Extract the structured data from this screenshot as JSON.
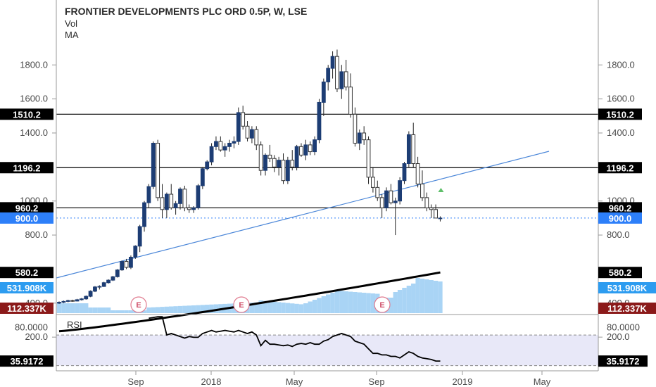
{
  "header": {
    "title": "FRONTIER DEVELOPMENTS PLC ORD 0.5P, W, LSE",
    "vol_label": "Vol",
    "ma_label": "MA"
  },
  "rsi": {
    "label": "RSI",
    "ticks": [
      "80.0000"
    ],
    "value": 35.9172,
    "value_label": "35.9172",
    "upper_band": 70,
    "lower_band": 30,
    "range": [
      25,
      95
    ]
  },
  "colors": {
    "up": "#1d3d74",
    "down_fill": "#ffffff",
    "down_stroke": "#333333",
    "trendline": "#4a86d8",
    "hline": "#000000",
    "volume": "#a9d4f5",
    "ma": "#000000",
    "rsi_band": "#e8e8f8",
    "current_price": "#2d7ff9"
  },
  "price_axis": {
    "ticks": [
      "1800.0",
      "1600.0",
      "1400.0",
      "1000.0",
      "800.0",
      "400.0",
      "200.0"
    ],
    "tick_values": [
      1800,
      1600,
      1400,
      1000,
      800,
      400,
      200
    ],
    "range": [
      230,
      1900
    ]
  },
  "price_labels": [
    {
      "text": "1510.2",
      "value": 1510.2,
      "style": "black",
      "line": true
    },
    {
      "text": "1196.2",
      "value": 1196.2,
      "style": "black",
      "line": true
    },
    {
      "text": "960.2",
      "value": 960.2,
      "style": "black",
      "line": true
    },
    {
      "text": "900.0",
      "value": 900.0,
      "style": "blue",
      "line": "dotted"
    },
    {
      "text": "580.2",
      "value": 580.2,
      "style": "black",
      "line": false
    }
  ],
  "volume_labels": [
    {
      "text": "531.908K",
      "style": "vol"
    },
    {
      "text": "112.337K",
      "style": "ma"
    }
  ],
  "x_axis": {
    "labels": [
      "Sep",
      "2018",
      "May",
      "Sep",
      "2019",
      "May"
    ]
  },
  "earnings_marker": "E",
  "chart_data": {
    "type": "candlestick",
    "title": "FRONTIER DEVELOPMENTS PLC ORD 0.5P, W, LSE",
    "interval": "weekly",
    "start_week": "2017-05-08",
    "ohlc": [
      [
        400,
        410,
        395,
        405
      ],
      [
        405,
        415,
        400,
        410
      ],
      [
        410,
        420,
        405,
        415
      ],
      [
        415,
        420,
        408,
        412
      ],
      [
        412,
        425,
        410,
        420
      ],
      [
        420,
        430,
        415,
        425
      ],
      [
        425,
        445,
        420,
        440
      ],
      [
        440,
        475,
        435,
        470
      ],
      [
        470,
        500,
        465,
        495
      ],
      [
        495,
        505,
        480,
        498
      ],
      [
        498,
        525,
        495,
        520
      ],
      [
        520,
        540,
        515,
        535
      ],
      [
        535,
        560,
        530,
        555
      ],
      [
        555,
        600,
        550,
        595
      ],
      [
        595,
        650,
        590,
        645
      ],
      [
        645,
        660,
        600,
        610
      ],
      [
        610,
        680,
        600,
        670
      ],
      [
        670,
        740,
        660,
        735
      ],
      [
        735,
        860,
        700,
        850
      ],
      [
        850,
        1000,
        820,
        990
      ],
      [
        990,
        1100,
        960,
        1085
      ],
      [
        1085,
        1350,
        1070,
        1340
      ],
      [
        1340,
        1360,
        1000,
        1020
      ],
      [
        1020,
        1100,
        900,
        950
      ],
      [
        950,
        1050,
        900,
        1040
      ],
      [
        1040,
        1100,
        950,
        960
      ],
      [
        960,
        1000,
        920,
        985
      ],
      [
        985,
        1080,
        950,
        1070
      ],
      [
        1070,
        1090,
        940,
        960
      ],
      [
        960,
        980,
        930,
        950
      ],
      [
        950,
        970,
        930,
        960
      ],
      [
        960,
        1100,
        950,
        1090
      ],
      [
        1090,
        1200,
        1070,
        1190
      ],
      [
        1190,
        1240,
        1180,
        1230
      ],
      [
        1230,
        1340,
        1210,
        1320
      ],
      [
        1320,
        1380,
        1300,
        1350
      ],
      [
        1350,
        1380,
        1290,
        1300
      ],
      [
        1300,
        1340,
        1260,
        1320
      ],
      [
        1320,
        1360,
        1290,
        1340
      ],
      [
        1340,
        1380,
        1310,
        1350
      ],
      [
        1350,
        1550,
        1330,
        1520
      ],
      [
        1520,
        1560,
        1420,
        1440
      ],
      [
        1440,
        1470,
        1350,
        1370
      ],
      [
        1370,
        1440,
        1340,
        1420
      ],
      [
        1420,
        1440,
        1300,
        1330
      ],
      [
        1330,
        1350,
        1150,
        1180
      ],
      [
        1180,
        1280,
        1150,
        1270
      ],
      [
        1270,
        1330,
        1230,
        1250
      ],
      [
        1250,
        1270,
        1170,
        1200
      ],
      [
        1200,
        1260,
        1150,
        1240
      ],
      [
        1240,
        1280,
        1100,
        1120
      ],
      [
        1120,
        1260,
        1100,
        1240
      ],
      [
        1240,
        1300,
        1180,
        1200
      ],
      [
        1200,
        1330,
        1180,
        1320
      ],
      [
        1320,
        1340,
        1260,
        1270
      ],
      [
        1270,
        1360,
        1240,
        1330
      ],
      [
        1330,
        1350,
        1270,
        1290
      ],
      [
        1290,
        1380,
        1270,
        1360
      ],
      [
        1360,
        1600,
        1340,
        1580
      ],
      [
        1580,
        1720,
        1500,
        1700
      ],
      [
        1700,
        1800,
        1650,
        1780
      ],
      [
        1780,
        1880,
        1720,
        1850
      ],
      [
        1850,
        1890,
        1640,
        1660
      ],
      [
        1660,
        1800,
        1600,
        1760
      ],
      [
        1760,
        1830,
        1650,
        1670
      ],
      [
        1670,
        1750,
        1490,
        1510
      ],
      [
        1510,
        1550,
        1320,
        1340
      ],
      [
        1340,
        1420,
        1300,
        1400
      ],
      [
        1400,
        1440,
        1330,
        1360
      ],
      [
        1360,
        1380,
        1100,
        1140
      ],
      [
        1140,
        1200,
        1050,
        1080
      ],
      [
        1080,
        1120,
        1000,
        1020
      ],
      [
        1020,
        1040,
        900,
        960
      ],
      [
        960,
        1080,
        940,
        1060
      ],
      [
        1060,
        1100,
        980,
        990
      ],
      [
        990,
        1020,
        800,
        1000
      ],
      [
        1000,
        1140,
        980,
        1120
      ],
      [
        1120,
        1230,
        1100,
        1220
      ],
      [
        1220,
        1410,
        1200,
        1390
      ],
      [
        1390,
        1460,
        1200,
        1220
      ],
      [
        1220,
        1260,
        1080,
        1100
      ],
      [
        1100,
        1180,
        1000,
        1020
      ],
      [
        1020,
        1050,
        940,
        960
      ],
      [
        960,
        980,
        900,
        950
      ],
      [
        950,
        980,
        900,
        900
      ],
      [
        900,
        910,
        880,
        900
      ]
    ],
    "ma_values": {
      "start": 235,
      "end": 580.2
    },
    "volume_axis_labels": [
      "531.908K",
      "112.337K"
    ],
    "rsi_values": [
      null,
      null,
      null,
      null,
      null,
      null,
      null,
      null,
      null,
      null,
      null,
      null,
      null,
      null,
      null,
      null,
      null,
      null,
      null,
      null,
      92,
      93,
      94,
      94,
      70,
      72,
      70,
      68,
      66,
      68,
      67,
      67,
      72,
      74,
      76,
      74,
      75,
      76,
      75,
      74,
      76,
      74,
      72,
      74,
      70,
      56,
      63,
      58,
      58,
      57,
      56,
      57,
      55,
      58,
      59,
      58,
      60,
      58,
      58,
      62,
      64,
      68,
      70,
      72,
      70,
      68,
      62,
      60,
      58,
      52,
      46,
      46,
      44,
      44,
      42,
      42,
      40,
      44,
      48,
      46,
      42,
      40,
      39,
      38,
      36,
      36
    ],
    "x_labels": [
      "Sep",
      "2018",
      "May",
      "Sep",
      "2019",
      "May"
    ]
  }
}
